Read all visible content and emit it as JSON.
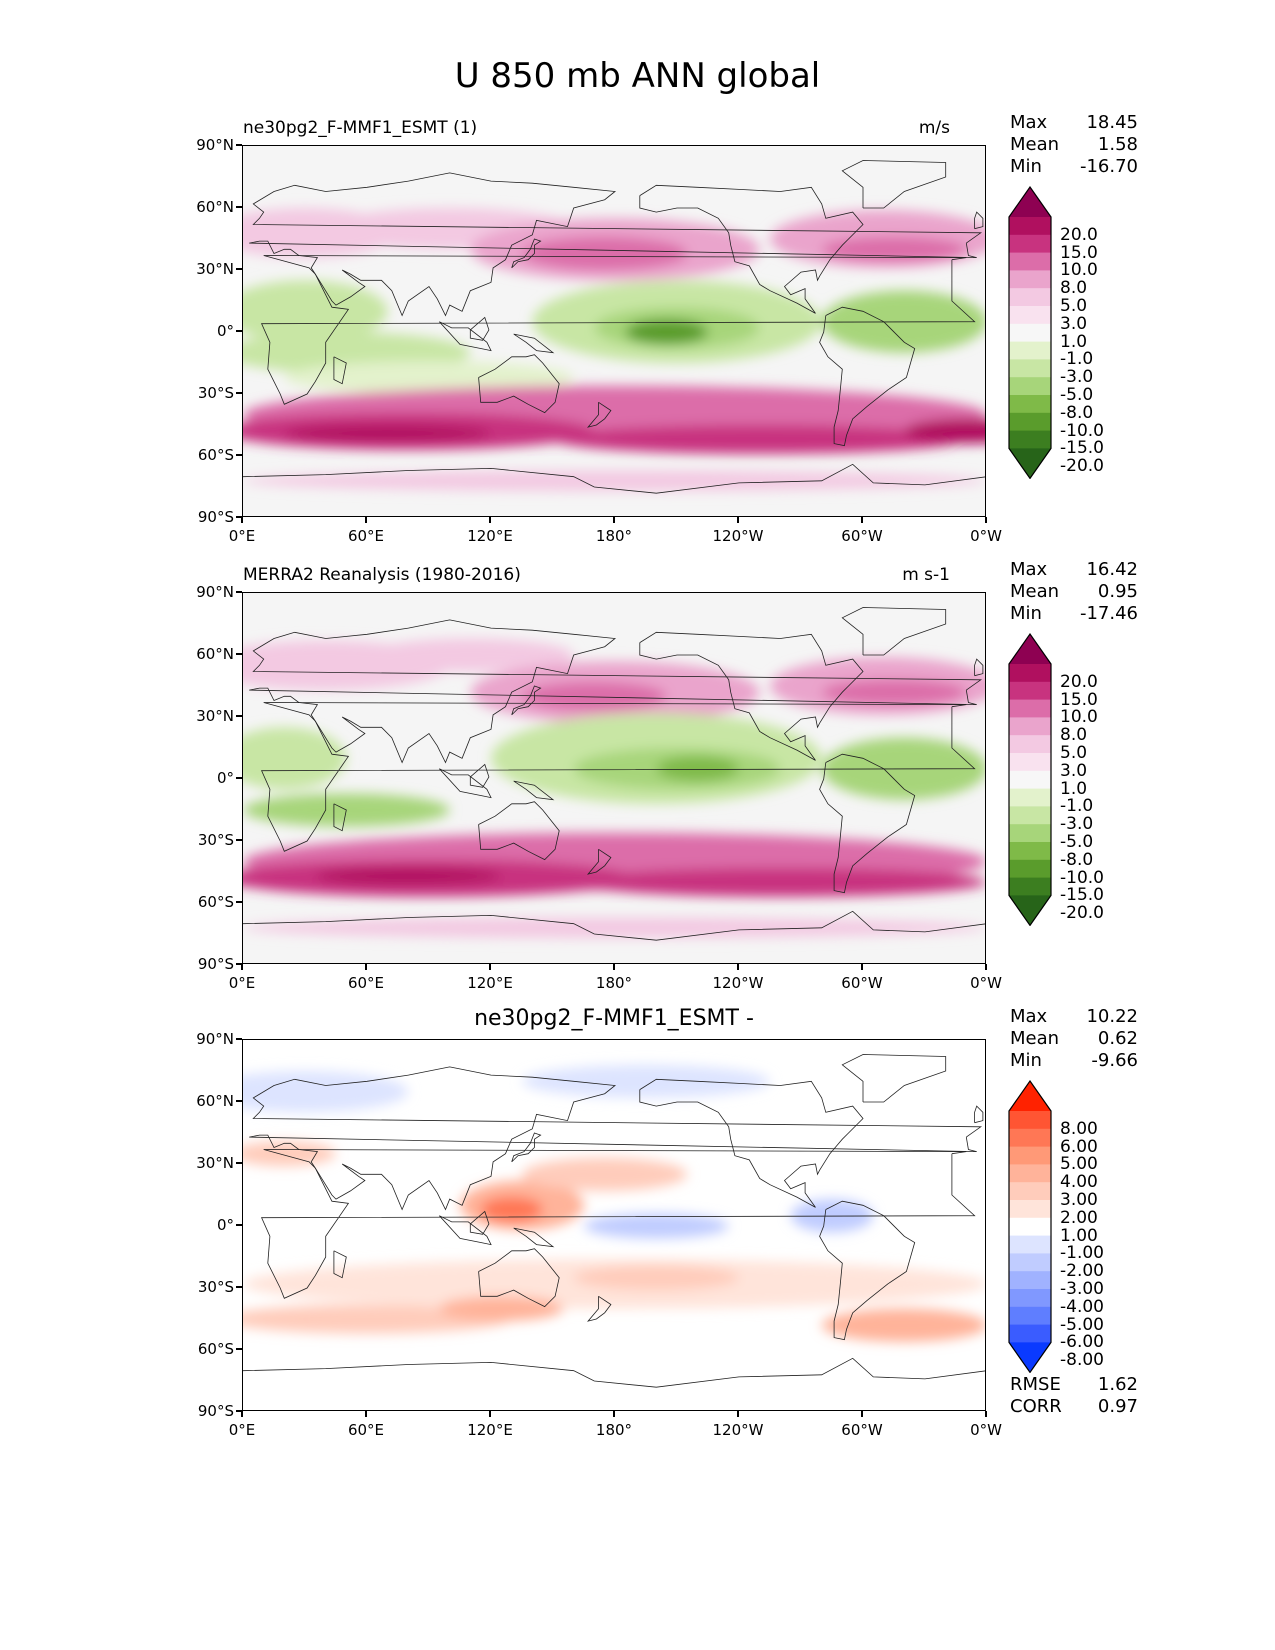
{
  "figure": {
    "title": "U 850 mb ANN global"
  },
  "axes": {
    "lat_labels": [
      "90°N",
      "60°N",
      "30°N",
      "0°",
      "30°S",
      "60°S",
      "90°S"
    ],
    "lon_labels": [
      "0°E",
      "60°E",
      "120°E",
      "180°",
      "120°W",
      "60°W",
      "0°W"
    ]
  },
  "panels": [
    {
      "title_left": "ne30pg2_F-MMF1_ESMT (1)",
      "title_right": "m/s",
      "title_center": "",
      "stats": [
        {
          "label": "Max",
          "value": "18.45"
        },
        {
          "label": "Mean",
          "value": "1.58"
        },
        {
          "label": "Min",
          "value": "-16.70"
        }
      ],
      "colorbar": {
        "labels": [
          "20.0",
          "15.0",
          "10.0",
          "8.0",
          "5.0",
          "3.0",
          "1.0",
          "-1.0",
          "-3.0",
          "-5.0",
          "-8.0",
          "-10.0",
          "-15.0",
          "-20.0"
        ],
        "colors": [
          "#8e0152",
          "#b0105f",
          "#c8337f",
          "#dc6da9",
          "#eaa4cc",
          "#f3c9e2",
          "#f9e2ef",
          "#f7f7f7",
          "#e3f2cc",
          "#c8e6a4",
          "#a7d57a",
          "#7fba48",
          "#5a9c2c",
          "#3c7e20",
          "#276419"
        ]
      },
      "metrics": []
    },
    {
      "title_left": "MERRA2 Reanalysis (1980-2016)",
      "title_right": "m s-1",
      "title_center": "",
      "stats": [
        {
          "label": "Max",
          "value": "16.42"
        },
        {
          "label": "Mean",
          "value": "0.95"
        },
        {
          "label": "Min",
          "value": "-17.46"
        }
      ],
      "colorbar": {
        "labels": [
          "20.0",
          "15.0",
          "10.0",
          "8.0",
          "5.0",
          "3.0",
          "1.0",
          "-1.0",
          "-3.0",
          "-5.0",
          "-8.0",
          "-10.0",
          "-15.0",
          "-20.0"
        ],
        "colors": [
          "#8e0152",
          "#b0105f",
          "#c8337f",
          "#dc6da9",
          "#eaa4cc",
          "#f3c9e2",
          "#f9e2ef",
          "#f7f7f7",
          "#e3f2cc",
          "#c8e6a4",
          "#a7d57a",
          "#7fba48",
          "#5a9c2c",
          "#3c7e20",
          "#276419"
        ]
      },
      "metrics": []
    },
    {
      "title_left": "",
      "title_right": "",
      "title_center": "ne30pg2_F-MMF1_ESMT -",
      "stats": [
        {
          "label": "Max",
          "value": "10.22"
        },
        {
          "label": "Mean",
          "value": "0.62"
        },
        {
          "label": "Min",
          "value": "-9.66"
        }
      ],
      "colorbar": {
        "labels": [
          "8.00",
          "6.00",
          "5.00",
          "4.00",
          "3.00",
          "2.00",
          "1.00",
          "-1.00",
          "-2.00",
          "-3.00",
          "-4.00",
          "-5.00",
          "-6.00",
          "-8.00"
        ],
        "colors": [
          "#ff2200",
          "#ff5533",
          "#ff7755",
          "#ff9977",
          "#ffb39a",
          "#ffccbb",
          "#ffe4da",
          "#ffffff",
          "#dde4ff",
          "#c0ccff",
          "#a0b2ff",
          "#8098ff",
          "#5f7eff",
          "#3a5cff",
          "#0a3aff"
        ]
      },
      "metrics": [
        {
          "label": "RMSE",
          "value": "1.62"
        },
        {
          "label": "CORR",
          "value": "0.97"
        }
      ]
    }
  ],
  "map_fields": [
    {
      "background": "#f5f5f5",
      "blobs": [
        {
          "lon": 30,
          "lat": 48,
          "rx": 45,
          "ry": 12,
          "color": "#f3c9e2"
        },
        {
          "lon": 100,
          "lat": 50,
          "rx": 60,
          "ry": 10,
          "color": "#f3c9e2"
        },
        {
          "lon": 180,
          "lat": 40,
          "rx": 70,
          "ry": 15,
          "color": "#eaa4cc"
        },
        {
          "lon": 175,
          "lat": 38,
          "rx": 40,
          "ry": 8,
          "color": "#dc6da9"
        },
        {
          "lon": 310,
          "lat": 45,
          "rx": 55,
          "ry": 14,
          "color": "#eaa4cc"
        },
        {
          "lon": 315,
          "lat": 40,
          "rx": 35,
          "ry": 6,
          "color": "#dc6da9"
        },
        {
          "lon": 30,
          "lat": 10,
          "rx": 40,
          "ry": 15,
          "color": "#c8e6a4"
        },
        {
          "lon": 50,
          "lat": -10,
          "rx": 60,
          "ry": 10,
          "color": "#c8e6a4"
        },
        {
          "lon": 210,
          "lat": 5,
          "rx": 70,
          "ry": 20,
          "color": "#c8e6a4"
        },
        {
          "lon": 210,
          "lat": 2,
          "rx": 40,
          "ry": 10,
          "color": "#a7d57a"
        },
        {
          "lon": 205,
          "lat": 0,
          "rx": 20,
          "ry": 6,
          "color": "#5a9c2c"
        },
        {
          "lon": 320,
          "lat": 5,
          "rx": 40,
          "ry": 15,
          "color": "#a7d57a"
        },
        {
          "lon": 90,
          "lat": -22,
          "rx": 70,
          "ry": 8,
          "color": "#e3f2cc"
        },
        {
          "lon": 180,
          "lat": -40,
          "rx": 180,
          "ry": 14,
          "color": "#dc6da9"
        },
        {
          "lon": 80,
          "lat": -48,
          "rx": 90,
          "ry": 9,
          "color": "#c8337f"
        },
        {
          "lon": 250,
          "lat": -52,
          "rx": 100,
          "ry": 7,
          "color": "#c8337f"
        },
        {
          "lon": 350,
          "lat": -48,
          "rx": 30,
          "ry": 6,
          "color": "#b0105f"
        },
        {
          "lon": 70,
          "lat": -49,
          "rx": 50,
          "ry": 4,
          "color": "#b0105f"
        },
        {
          "lon": 180,
          "lat": -72,
          "rx": 180,
          "ry": 5,
          "color": "#f3c9e2"
        }
      ]
    },
    {
      "background": "#f5f5f5",
      "blobs": [
        {
          "lon": 40,
          "lat": 55,
          "rx": 60,
          "ry": 12,
          "color": "#f3c9e2"
        },
        {
          "lon": 110,
          "lat": 60,
          "rx": 50,
          "ry": 8,
          "color": "#f3c9e2"
        },
        {
          "lon": 180,
          "lat": 42,
          "rx": 70,
          "ry": 15,
          "color": "#eaa4cc"
        },
        {
          "lon": 170,
          "lat": 40,
          "rx": 35,
          "ry": 7,
          "color": "#dc6da9"
        },
        {
          "lon": 310,
          "lat": 45,
          "rx": 55,
          "ry": 14,
          "color": "#eaa4cc"
        },
        {
          "lon": 315,
          "lat": 42,
          "rx": 35,
          "ry": 6,
          "color": "#dc6da9"
        },
        {
          "lon": 20,
          "lat": 10,
          "rx": 30,
          "ry": 15,
          "color": "#c8e6a4"
        },
        {
          "lon": 50,
          "lat": -15,
          "rx": 50,
          "ry": 8,
          "color": "#a7d57a"
        },
        {
          "lon": 200,
          "lat": 10,
          "rx": 80,
          "ry": 22,
          "color": "#c8e6a4"
        },
        {
          "lon": 210,
          "lat": 5,
          "rx": 50,
          "ry": 10,
          "color": "#a7d57a"
        },
        {
          "lon": 220,
          "lat": 5,
          "rx": 20,
          "ry": 6,
          "color": "#7fba48"
        },
        {
          "lon": 320,
          "lat": 5,
          "rx": 40,
          "ry": 15,
          "color": "#a7d57a"
        },
        {
          "lon": 180,
          "lat": -40,
          "rx": 180,
          "ry": 14,
          "color": "#dc6da9"
        },
        {
          "lon": 90,
          "lat": -48,
          "rx": 100,
          "ry": 9,
          "color": "#c8337f"
        },
        {
          "lon": 260,
          "lat": -50,
          "rx": 100,
          "ry": 7,
          "color": "#c8337f"
        },
        {
          "lon": 80,
          "lat": -47,
          "rx": 45,
          "ry": 4,
          "color": "#b0105f"
        },
        {
          "lon": 180,
          "lat": -72,
          "rx": 180,
          "ry": 5,
          "color": "#f3c9e2"
        }
      ]
    },
    {
      "background": "#ffffff",
      "blobs": [
        {
          "lon": 30,
          "lat": 65,
          "rx": 50,
          "ry": 10,
          "color": "#dde4ff"
        },
        {
          "lon": 195,
          "lat": 70,
          "rx": 60,
          "ry": 8,
          "color": "#dde4ff"
        },
        {
          "lon": 20,
          "lat": 35,
          "rx": 25,
          "ry": 6,
          "color": "#ffccbb"
        },
        {
          "lon": 135,
          "lat": 10,
          "rx": 30,
          "ry": 12,
          "color": "#ffb39a"
        },
        {
          "lon": 130,
          "lat": 8,
          "rx": 15,
          "ry": 6,
          "color": "#ff7755"
        },
        {
          "lon": 175,
          "lat": 25,
          "rx": 40,
          "ry": 8,
          "color": "#ffccbb"
        },
        {
          "lon": 200,
          "lat": 0,
          "rx": 35,
          "ry": 6,
          "color": "#c0ccff"
        },
        {
          "lon": 285,
          "lat": 5,
          "rx": 20,
          "ry": 8,
          "color": "#c0ccff"
        },
        {
          "lon": 180,
          "lat": -28,
          "rx": 180,
          "ry": 12,
          "color": "#ffe4da"
        },
        {
          "lon": 60,
          "lat": -45,
          "rx": 70,
          "ry": 7,
          "color": "#ffccbb"
        },
        {
          "lon": 125,
          "lat": -40,
          "rx": 30,
          "ry": 6,
          "color": "#ffb39a"
        },
        {
          "lon": 320,
          "lat": -48,
          "rx": 40,
          "ry": 8,
          "color": "#ffb39a"
        },
        {
          "lon": 200,
          "lat": -25,
          "rx": 40,
          "ry": 6,
          "color": "#ffccbb"
        }
      ]
    }
  ]
}
